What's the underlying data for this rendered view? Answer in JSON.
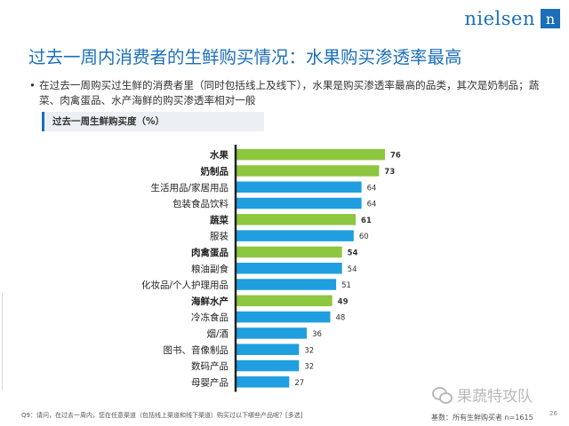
{
  "brand": {
    "name": "nielsen",
    "mark": "n"
  },
  "title": "过去一周内消费者的生鲜购买情况：水果购买渗透率最高",
  "bullet": {
    "dot": "•",
    "text": "在过去一周购买过生鲜的消费者里（同时包括线上及线下），水果是购买渗透率最高的品类，其次是奶制品；蔬菜、肉禽蛋品、水产海鲜的购买渗透率相对一般"
  },
  "chart_data": {
    "type": "bar",
    "orientation": "horizontal",
    "title": "过去一周生鲜购买度（%）",
    "xlabel": "",
    "ylabel": "",
    "xlim": [
      0,
      80
    ],
    "grid": false,
    "categories": [
      "水果",
      "奶制品",
      "生活用品/家居用品",
      "包装食品饮料",
      "蔬菜",
      "服装",
      "肉禽蛋品",
      "粮油副食",
      "化妆品/个人护理用品",
      "海鲜水产",
      "冷冻食品",
      "烟/酒",
      "图书、音像制品",
      "数码产品",
      "母婴产品"
    ],
    "values": [
      76,
      73,
      64,
      64,
      61,
      60,
      54,
      54,
      51,
      49,
      48,
      36,
      32,
      32,
      27
    ],
    "highlight": [
      true,
      true,
      false,
      false,
      true,
      false,
      true,
      false,
      false,
      true,
      false,
      false,
      false,
      false,
      false
    ],
    "colors": {
      "highlight": "#8dc63f",
      "normal": "#1f9ee0",
      "axis": "#222222"
    }
  },
  "footnote": "Q9：请问，在过去一周内，您在任意渠道（包括线上渠道和线下渠道）购买过以下哪些产品呢？[多选]",
  "base": "基数：所有生鲜购买者 n=1615",
  "page_number": "26",
  "watermark": {
    "icon": "wechat-icon",
    "text": "果蔬特攻队"
  }
}
